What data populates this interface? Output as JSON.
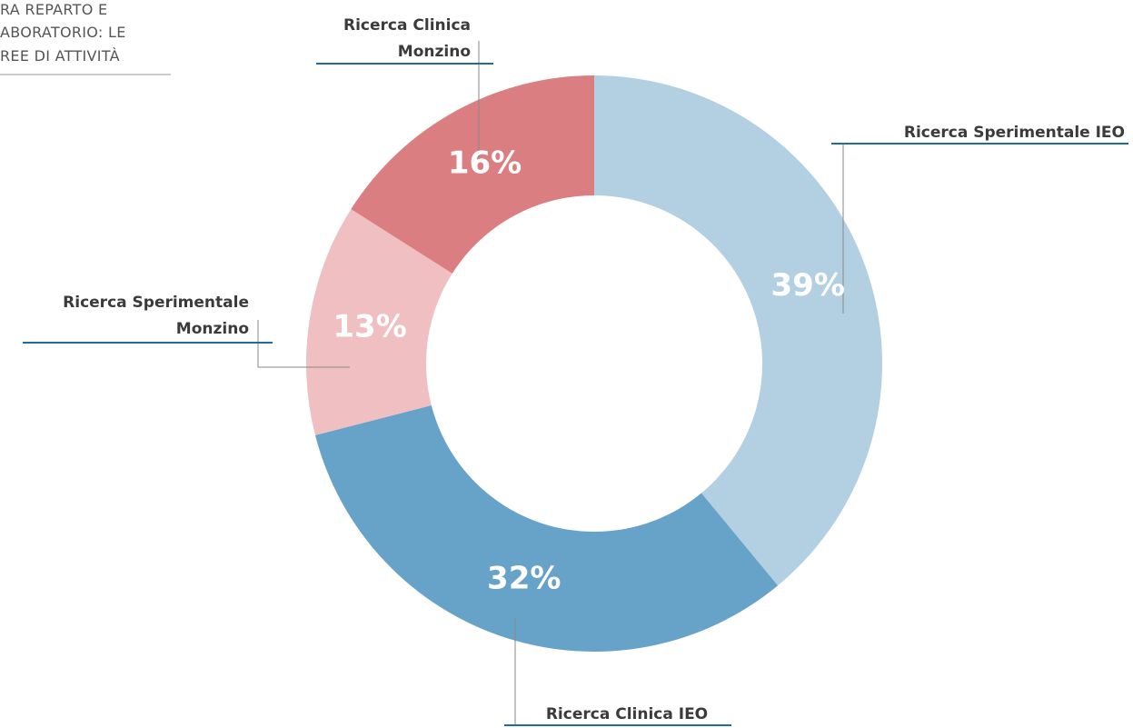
{
  "chart_data": {
    "type": "donut",
    "title_lines": [
      "RA REPARTO E",
      "ABORATORIO: LE",
      "REE DI ATTIVITÀ"
    ],
    "categories": [
      [
        "Ricerca Sperimentale IEO"
      ],
      [
        "Ricerca Clinica IEO"
      ],
      [
        "Ricerca Sperimentale",
        "Monzino"
      ],
      [
        "Ricerca Clinica",
        "Monzino"
      ]
    ],
    "values": [
      39,
      32,
      13,
      16
    ],
    "value_labels": [
      "39%",
      "32%",
      "13%",
      "16%"
    ],
    "colors": [
      "#b3cfe2",
      "#67a3c9",
      "#efbfc1",
      "#db7e81"
    ]
  }
}
